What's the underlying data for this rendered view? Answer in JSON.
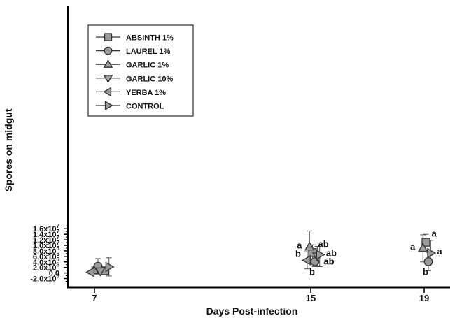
{
  "chart_data": {
    "type": "scatter",
    "title": "",
    "xlabel": "Days Post-infection",
    "ylabel": "Spores on midgut",
    "x_categories": [
      "7",
      "15",
      "19"
    ],
    "ylim": [
      -3200000,
      17000000
    ],
    "y_ticks": [
      {
        "value": -2000000,
        "mantissa": "-2,0x10",
        "exp": "6"
      },
      {
        "value": 0,
        "mantissa": "0,0",
        "exp": ""
      },
      {
        "value": 2000000,
        "mantissa": "2,0x10",
        "exp": "6"
      },
      {
        "value": 4000000,
        "mantissa": "4,0x10",
        "exp": "6"
      },
      {
        "value": 6000000,
        "mantissa": "6,0x10",
        "exp": "6"
      },
      {
        "value": 8000000,
        "mantissa": "8,0x10",
        "exp": "6"
      },
      {
        "value": 10000000,
        "mantissa": "1,0x10",
        "exp": "7"
      },
      {
        "value": 12000000,
        "mantissa": "1,2x10",
        "exp": "7"
      },
      {
        "value": 14000000,
        "mantissa": "1,4x10",
        "exp": "7"
      },
      {
        "value": 16000000,
        "mantissa": "1,6x10",
        "exp": "7"
      }
    ],
    "grid": false,
    "legend_position": "top-left",
    "series": [
      {
        "name": "ABSINTH 1%",
        "marker": "square",
        "points": [
          {
            "day": "7",
            "offset": 0.18,
            "y": 800000,
            "err_low": 1000000,
            "err_high": 600000
          },
          {
            "day": "15",
            "offset": 0.03,
            "y": 7400000,
            "err_low": 2800000,
            "err_high": 2800000,
            "label": "ab"
          },
          {
            "day": "19",
            "offset": 0.03,
            "y": 11100000,
            "err_low": 2900000,
            "err_high": 2900000,
            "label": "a"
          }
        ]
      },
      {
        "name": "LAUREL 1%",
        "marker": "circle",
        "points": [
          {
            "day": "7",
            "offset": 0.06,
            "y": 2400000,
            "err_low": 2800000,
            "err_high": 2800000
          },
          {
            "day": "15",
            "offset": 0.07,
            "y": 4100000,
            "err_low": 1800000,
            "err_high": 1800000,
            "label": "b"
          },
          {
            "day": "19",
            "offset": 0.07,
            "y": 4100000,
            "err_low": 3300000,
            "err_high": 3300000,
            "label": "b"
          }
        ]
      },
      {
        "name": "GARLIC 1%",
        "marker": "triangle-up",
        "points": [
          {
            "day": "7",
            "offset": -0.01,
            "y": 900000,
            "err_low": 1300000,
            "err_high": 1300000
          },
          {
            "day": "15",
            "offset": -0.02,
            "y": 9400000,
            "err_low": 5800000,
            "err_high": 5800000,
            "label": "a"
          },
          {
            "day": "19",
            "offset": -0.02,
            "y": 8900000,
            "err_low": 4900000,
            "err_high": 4900000,
            "label": "a"
          }
        ]
      },
      {
        "name": "GARLIC 10%",
        "marker": "triangle-down",
        "points": [
          {
            "day": "7",
            "offset": 0.1,
            "y": 700000,
            "err_low": 1000000,
            "err_high": 1000000
          },
          {
            "day": "15",
            "offset": 0.11,
            "y": 6100000,
            "err_low": 3500000,
            "err_high": 3500000,
            "label": "ab"
          }
        ]
      },
      {
        "name": "YERBA 1%",
        "marker": "triangle-left",
        "points": [
          {
            "day": "7",
            "offset": -0.06,
            "y": 300000,
            "err_low": 600000,
            "err_high": 600000
          },
          {
            "day": "15",
            "offset": -0.06,
            "y": 4600000,
            "err_low": 3100000,
            "err_high": 3100000,
            "label": "b"
          }
        ]
      },
      {
        "name": "CONTROL",
        "marker": "triangle-right",
        "points": [
          {
            "day": "7",
            "offset": 0.25,
            "y": 2200000,
            "err_low": 3300000,
            "err_high": 3300000
          },
          {
            "day": "15",
            "offset": 0.15,
            "y": 6600000,
            "err_low": 4300000,
            "err_high": 4300000,
            "label": "ab"
          },
          {
            "day": "19",
            "offset": 0.11,
            "y": 7200000,
            "err_low": 4600000,
            "err_high": 4600000,
            "label": "a"
          }
        ]
      }
    ]
  }
}
